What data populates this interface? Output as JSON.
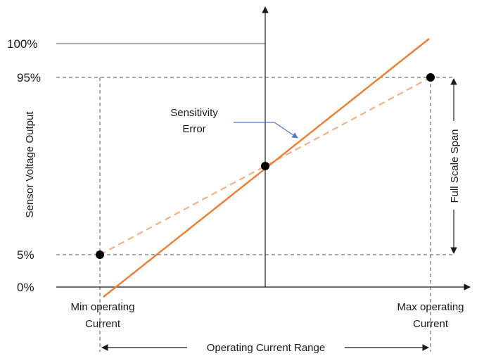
{
  "y_ticks": {
    "p100": "100%",
    "p95": "95%",
    "p5": "5%",
    "p0": "0%"
  },
  "y_axis_title": "Sensor Voltage Output",
  "annotation": {
    "line1": "Sensitivity",
    "line2": "Error"
  },
  "x_labels": {
    "min_line1": "Min operating",
    "min_line2": "Current",
    "max_line1": "Max operating",
    "max_line2": "Current"
  },
  "range_label": "Operating Current Range",
  "span_label": "Full Scale Span",
  "colors": {
    "ideal_line": "#ed7d31",
    "real_line": "#f4b183",
    "axis": "#1a1a1a",
    "guide": "#555555",
    "annotation_arrow": "#4a7cc9",
    "point": "#000000"
  }
}
